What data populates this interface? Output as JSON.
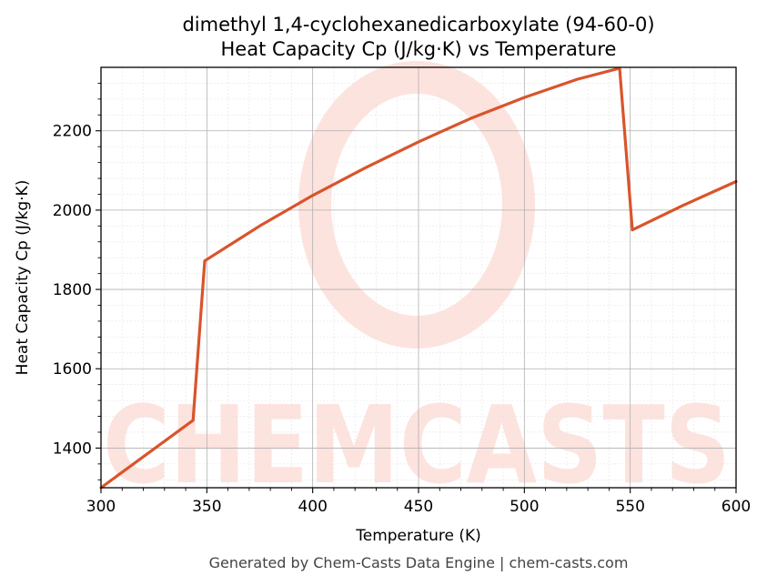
{
  "chart_data": {
    "type": "line",
    "title_line1": "dimethyl 1,4-cyclohexanedicarboxylate (94-60-0)",
    "title_line2": "Heat Capacity Cp (J/kg·K) vs Temperature",
    "xlabel": "Temperature (K)",
    "ylabel": "Heat Capacity Cp (J/kg·K)",
    "xlim": [
      300,
      600
    ],
    "ylim": [
      1300,
      2360
    ],
    "xticks": [
      300,
      350,
      400,
      450,
      500,
      550,
      600
    ],
    "yticks": [
      1400,
      1600,
      1800,
      2000,
      2200
    ],
    "grid": true,
    "line_color": "#d9542b",
    "series": [
      {
        "x": [
          300,
          343.5,
          349,
          375,
          400,
          425,
          450,
          475,
          500,
          525,
          545,
          551,
          575,
          600
        ],
        "y": [
          1300,
          1470,
          1872,
          1960,
          2037,
          2107,
          2172,
          2232,
          2284,
          2330,
          2358,
          1950,
          2012,
          2072
        ]
      }
    ],
    "watermark": "CHEMCASTS",
    "footer": "Generated by Chem-Casts Data Engine | chem-casts.com"
  }
}
